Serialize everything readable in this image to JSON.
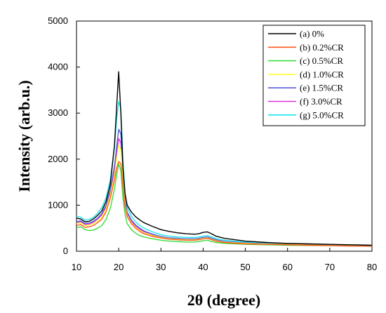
{
  "chart_data": {
    "type": "line",
    "title": "",
    "xlabel": "2θ (degree)",
    "ylabel": "Intensity (arb.u.)",
    "xlim": [
      10,
      80
    ],
    "ylim": [
      0,
      5000
    ],
    "x_ticks": [
      "10",
      "20",
      "30",
      "40",
      "50",
      "60",
      "70",
      "80"
    ],
    "y_ticks": [
      "0",
      "1000",
      "2000",
      "3000",
      "4000",
      "5000"
    ],
    "grid": false,
    "legend_position": "top-right",
    "x": [
      10,
      11,
      12,
      13,
      14,
      15,
      16,
      17,
      18,
      19,
      19.5,
      20,
      20.5,
      21,
      21.5,
      22,
      23,
      24,
      25,
      26,
      28,
      30,
      32,
      34,
      36,
      38,
      39,
      40,
      41,
      42,
      43,
      45,
      50,
      55,
      60,
      65,
      70,
      75,
      80
    ],
    "series": [
      {
        "name": "(a) 0%",
        "color": "#000000",
        "values": [
          720,
          700,
          640,
          650,
          700,
          780,
          880,
          1080,
          1450,
          2300,
          3100,
          3900,
          3000,
          1800,
          1250,
          1000,
          850,
          750,
          680,
          620,
          540,
          470,
          430,
          400,
          380,
          370,
          380,
          410,
          420,
          380,
          330,
          280,
          220,
          190,
          170,
          160,
          150,
          140,
          130
        ]
      },
      {
        "name": "(b) 0.2%CR",
        "color": "#ff5a1e",
        "values": [
          560,
          580,
          520,
          530,
          560,
          620,
          700,
          860,
          1150,
          1550,
          1800,
          1950,
          1900,
          1400,
          950,
          750,
          600,
          500,
          430,
          380,
          320,
          290,
          260,
          250,
          240,
          240,
          250,
          270,
          280,
          250,
          220,
          190,
          160,
          150,
          140,
          130,
          120,
          115,
          110
        ]
      },
      {
        "name": "(c) 0.5%CR",
        "color": "#3cdc3c",
        "values": [
          510,
          530,
          470,
          450,
          460,
          500,
          560,
          690,
          930,
          1350,
          1650,
          1900,
          1750,
          1150,
          800,
          600,
          470,
          390,
          340,
          310,
          270,
          240,
          220,
          210,
          200,
          200,
          210,
          230,
          240,
          210,
          190,
          170,
          150,
          140,
          130,
          125,
          120,
          115,
          110
        ]
      },
      {
        "name": "(d) 1.0%CR",
        "color": "#ffff32",
        "values": [
          600,
          620,
          560,
          570,
          600,
          660,
          750,
          920,
          1220,
          1650,
          2000,
          2300,
          2200,
          1500,
          1000,
          780,
          620,
          520,
          450,
          400,
          340,
          300,
          270,
          260,
          250,
          250,
          260,
          280,
          290,
          260,
          230,
          200,
          170,
          155,
          145,
          135,
          125,
          120,
          115
        ]
      },
      {
        "name": "(e) 1.5%CR",
        "color": "#5a5adc",
        "values": [
          640,
          660,
          600,
          610,
          650,
          720,
          820,
          1000,
          1330,
          1850,
          2250,
          2650,
          2550,
          1700,
          1100,
          850,
          680,
          570,
          500,
          440,
          370,
          320,
          290,
          280,
          270,
          270,
          280,
          300,
          310,
          280,
          250,
          215,
          180,
          160,
          150,
          140,
          130,
          125,
          120
        ]
      },
      {
        "name": "(f) 3.0%CR",
        "color": "#dc32dc",
        "values": [
          620,
          640,
          580,
          590,
          630,
          700,
          790,
          960,
          1280,
          1750,
          2100,
          2450,
          2350,
          1600,
          1050,
          820,
          650,
          550,
          480,
          425,
          360,
          310,
          285,
          275,
          265,
          265,
          275,
          295,
          305,
          275,
          245,
          210,
          175,
          158,
          148,
          138,
          128,
          122,
          118
        ]
      },
      {
        "name": "(g) 5.0%CR",
        "color": "#1ee6f0",
        "values": [
          760,
          740,
          680,
          690,
          740,
          830,
          950,
          1160,
          1550,
          2250,
          2850,
          3250,
          3100,
          2000,
          1250,
          950,
          760,
          640,
          560,
          500,
          420,
          360,
          330,
          310,
          300,
          300,
          310,
          330,
          340,
          310,
          275,
          240,
          200,
          175,
          160,
          150,
          140,
          133,
          128
        ]
      }
    ]
  }
}
